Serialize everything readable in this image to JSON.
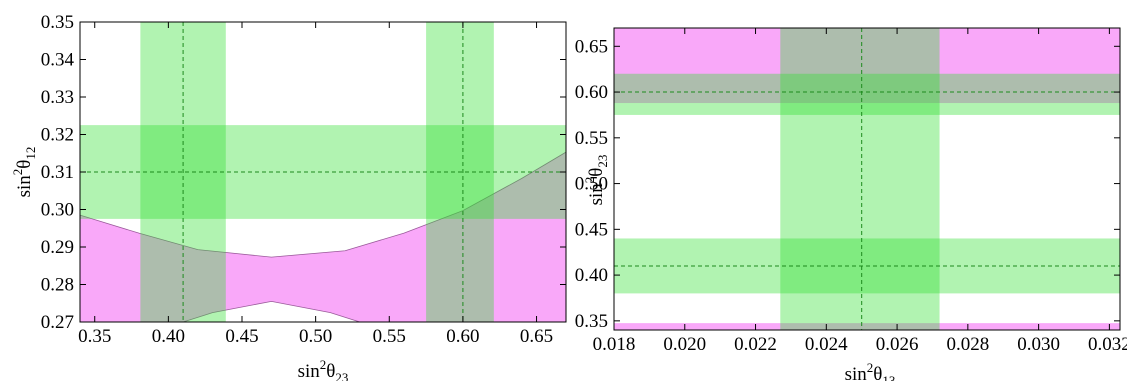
{
  "chart_data": [
    {
      "type": "area",
      "xlabel": {
        "base": "sin",
        "sup": "2",
        "sym": "θ",
        "sub": "23"
      },
      "ylabel": {
        "base": "sin",
        "sup": "2",
        "sym": "θ",
        "sub": "12"
      },
      "xlim": [
        0.34,
        0.67
      ],
      "ylim": [
        0.27,
        0.35
      ],
      "xticks": [
        "0.35",
        "0.40",
        "0.45",
        "0.50",
        "0.55",
        "0.60",
        "0.65"
      ],
      "yticks": [
        "0.27",
        "0.28",
        "0.29",
        "0.30",
        "0.31",
        "0.32",
        "0.33",
        "0.34",
        "0.35"
      ],
      "grid": false,
      "colors": {
        "magenta": "#f9a8f9",
        "green": "#7ff07f",
        "overlap": "#a6c4a6",
        "guide": "#1d8a1d"
      },
      "magenta_region": {
        "outer_bottom_y": 0.27,
        "upper_boundary": [
          [
            0.34,
            0.2985
          ],
          [
            0.38,
            0.2937
          ],
          [
            0.42,
            0.2893
          ],
          [
            0.47,
            0.2873
          ],
          [
            0.52,
            0.289
          ],
          [
            0.56,
            0.2937
          ],
          [
            0.6,
            0.2997
          ],
          [
            0.64,
            0.3083
          ],
          [
            0.67,
            0.3153
          ]
        ],
        "lower_boundary_of_upper_band": [
          [
            0.34,
            0.2975
          ],
          [
            0.67,
            0.2975
          ]
        ],
        "inner_hole": [
          [
            0.41,
            0.27
          ],
          [
            0.43,
            0.2725
          ],
          [
            0.47,
            0.2755
          ],
          [
            0.51,
            0.2725
          ],
          [
            0.53,
            0.27
          ]
        ]
      },
      "green_vertical_bands": [
        {
          "x_from": 0.381,
          "x_to": 0.439,
          "center": 0.41
        },
        {
          "x_from": 0.575,
          "x_to": 0.621,
          "center": 0.6
        }
      ],
      "green_horizontal_bands": [
        {
          "y_from": 0.2975,
          "y_to": 0.3225,
          "center": 0.31
        }
      ]
    },
    {
      "type": "area",
      "xlabel": {
        "base": "sin",
        "sup": "2",
        "sym": "θ",
        "sub": "13"
      },
      "ylabel": {
        "base": "sin",
        "sup": "2",
        "sym": "θ",
        "sub": "23"
      },
      "xlim": [
        0.018,
        0.0323
      ],
      "ylim": [
        0.34,
        0.67
      ],
      "xticks": [
        "0.018",
        "0.020",
        "0.022",
        "0.024",
        "0.026",
        "0.028",
        "0.030",
        "0.032"
      ],
      "yticks": [
        "0.35",
        "0.40",
        "0.45",
        "0.50",
        "0.55",
        "0.60",
        "0.65"
      ],
      "grid": false,
      "colors": {
        "magenta": "#f9a8f9",
        "green": "#7ff07f",
        "overlap": "#a6c4a6",
        "guide": "#1d8a1d"
      },
      "magenta_bands": [
        {
          "y_from": 0.588,
          "y_to": 0.67
        },
        {
          "y_from": 0.34,
          "y_to": 0.3475
        }
      ],
      "green_vertical_bands": [
        {
          "x_from": 0.0227,
          "x_to": 0.0272,
          "center": 0.025
        }
      ],
      "green_horizontal_bands": [
        {
          "y_from": 0.575,
          "y_to": 0.62,
          "center": 0.6
        },
        {
          "y_from": 0.38,
          "y_to": 0.44,
          "center": 0.41
        }
      ]
    }
  ]
}
